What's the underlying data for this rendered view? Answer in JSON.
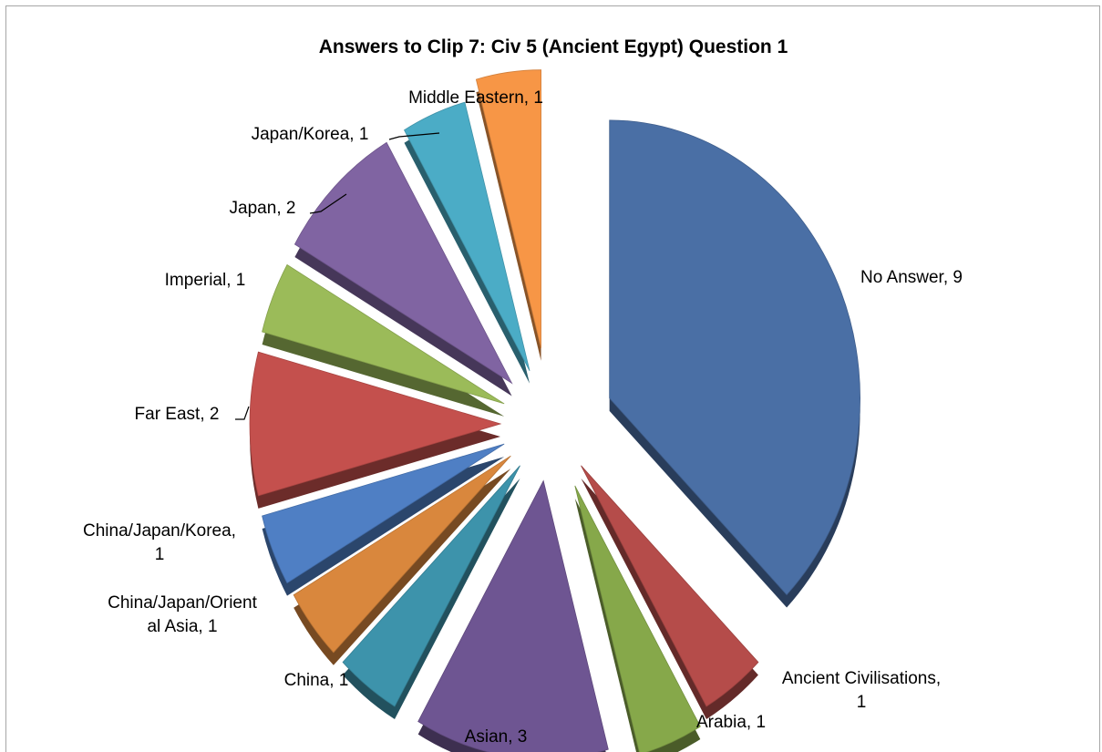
{
  "chart_data": {
    "type": "pie",
    "style": "exploded-3d",
    "title": "Answers to Clip 7: Civ 5 (Ancient Egypt) Question 1",
    "legend": "none",
    "slices": [
      {
        "label": "No Answer",
        "value": 9,
        "color": "#4a6fa5",
        "data_label": [
          "No Answer, 9"
        ]
      },
      {
        "label": "Ancient Civilisations",
        "value": 1,
        "color": "#b54c4a",
        "data_label": [
          "Ancient Civilisations,",
          "1"
        ]
      },
      {
        "label": "Arabia",
        "value": 1,
        "color": "#86a84a",
        "data_label": [
          "Arabia, 1"
        ]
      },
      {
        "label": "Asian",
        "value": 3,
        "color": "#6e5592",
        "data_label": [
          "Asian, 3"
        ]
      },
      {
        "label": "China",
        "value": 1,
        "color": "#3d93ab",
        "data_label": [
          "China, 1"
        ]
      },
      {
        "label": "China/Japan/Oriental Asia",
        "value": 1,
        "color": "#d9873d",
        "data_label": [
          "China/Japan/Orient",
          "al Asia, 1"
        ]
      },
      {
        "label": "China/Japan/Korea",
        "value": 1,
        "color": "#4f7fc4",
        "data_label": [
          "China/Japan/Korea,",
          "1"
        ]
      },
      {
        "label": "Far East",
        "value": 2,
        "color": "#c4504d",
        "data_label": [
          "Far East, 2"
        ]
      },
      {
        "label": "Imperial",
        "value": 1,
        "color": "#9bbb59",
        "data_label": [
          "Imperial, 1"
        ]
      },
      {
        "label": "Japan",
        "value": 2,
        "color": "#8064a2",
        "data_label": [
          "Japan, 2"
        ]
      },
      {
        "label": "Japan/Korea",
        "value": 1,
        "color": "#4bacc6",
        "data_label": [
          "Japan/Korea, 1"
        ]
      },
      {
        "label": "Middle Eastern",
        "value": 1,
        "color": "#f79646",
        "data_label": [
          "Middle Eastern, 1"
        ]
      }
    ]
  }
}
